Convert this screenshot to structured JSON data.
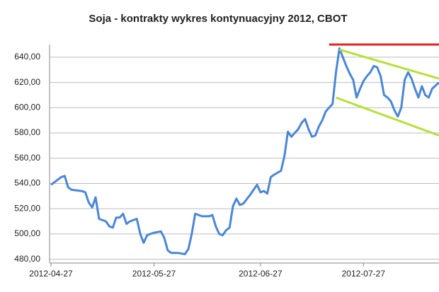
{
  "chart_data": {
    "type": "line",
    "title": "Soja - kontrakty wykres kontynuacyjny 2012, CBOT",
    "x": [
      "2012-04-27",
      "2012-04-29",
      "2012-04-30",
      "2012-05-01",
      "2012-05-02",
      "2012-05-03",
      "2012-05-06",
      "2012-05-07",
      "2012-05-08",
      "2012-05-09",
      "2012-05-10",
      "2012-05-11",
      "2012-05-13",
      "2012-05-14",
      "2012-05-15",
      "2012-05-16",
      "2012-05-17",
      "2012-05-18",
      "2012-05-19",
      "2012-05-20",
      "2012-05-22",
      "2012-05-23",
      "2012-05-24",
      "2012-05-25",
      "2012-05-26",
      "2012-05-27",
      "2012-05-29",
      "2012-05-30",
      "2012-05-31",
      "2012-06-01",
      "2012-06-03",
      "2012-06-05",
      "2012-06-06",
      "2012-06-07",
      "2012-06-08",
      "2012-06-09",
      "2012-06-10",
      "2012-06-12",
      "2012-06-13",
      "2012-06-14",
      "2012-06-15",
      "2012-06-16",
      "2012-06-17",
      "2012-06-18",
      "2012-06-19",
      "2012-06-20",
      "2012-06-21",
      "2012-06-22",
      "2012-06-24",
      "2012-06-26",
      "2012-06-27",
      "2012-06-28",
      "2012-06-29",
      "2012-06-30",
      "2012-07-01",
      "2012-07-03",
      "2012-07-04",
      "2012-07-05",
      "2012-07-06",
      "2012-07-07",
      "2012-07-08",
      "2012-07-09",
      "2012-07-10",
      "2012-07-11",
      "2012-07-12",
      "2012-07-13",
      "2012-07-14",
      "2012-07-15",
      "2012-07-16",
      "2012-07-17",
      "2012-07-18",
      "2012-07-19",
      "2012-07-20",
      "2012-07-21",
      "2012-07-22",
      "2012-07-23",
      "2012-07-24",
      "2012-07-25",
      "2012-07-26",
      "2012-07-27",
      "2012-07-28",
      "2012-07-29",
      "2012-07-30",
      "2012-07-31",
      "2012-08-01",
      "2012-08-02",
      "2012-08-03",
      "2012-08-04",
      "2012-08-05",
      "2012-08-06",
      "2012-08-07",
      "2012-08-08",
      "2012-08-09",
      "2012-08-10",
      "2012-08-11",
      "2012-08-12",
      "2012-08-13",
      "2012-08-14",
      "2012-08-15",
      "2012-08-16",
      "2012-08-18"
    ],
    "series": [
      {
        "color": "#4a86d6",
        "values": [
          539,
          543,
          545,
          546,
          537,
          535,
          534,
          533,
          525,
          521,
          529,
          512,
          510,
          506,
          505,
          513,
          513,
          516,
          508,
          510,
          512,
          500,
          493,
          499,
          500,
          501,
          502,
          497,
          487,
          485,
          485,
          484,
          488,
          500,
          516,
          515,
          514,
          514,
          515,
          506,
          500,
          499,
          503,
          505,
          522,
          528,
          523,
          524,
          531,
          539,
          533,
          534,
          532,
          545,
          547,
          550,
          562,
          581,
          577,
          580,
          583,
          588,
          591,
          583,
          577,
          578,
          585,
          590,
          597,
          600,
          603,
          628,
          647,
          640,
          633,
          627,
          622,
          608,
          615,
          621,
          625,
          628,
          633,
          632,
          625,
          610,
          608,
          605,
          598,
          593,
          600,
          622,
          628,
          623,
          615,
          608,
          617,
          610,
          608,
          615,
          620
        ]
      }
    ],
    "trendlines": [
      {
        "color": "#e02424",
        "x": [
          "2012-07-17",
          "2012-08-18"
        ],
        "y": [
          650,
          650
        ]
      },
      {
        "color": "#b6e03a",
        "x": [
          "2012-07-20",
          "2012-08-18"
        ],
        "y": [
          646,
          623
        ]
      },
      {
        "color": "#b6e03a",
        "x": [
          "2012-07-19",
          "2012-08-18"
        ],
        "y": [
          608,
          578
        ]
      }
    ],
    "xlim": [
      "2012-04-27",
      "2012-08-18"
    ],
    "xticks": [
      "2012-04-27",
      "2012-05-27",
      "2012-06-27",
      "2012-07-27"
    ],
    "ylim": [
      477,
      650
    ],
    "yticks": [
      {
        "value": 480,
        "label": "480,00"
      },
      {
        "value": 500,
        "label": "500,00"
      },
      {
        "value": 520,
        "label": "520,00"
      },
      {
        "value": 540,
        "label": "540,00"
      },
      {
        "value": 560,
        "label": "560,00"
      },
      {
        "value": 580,
        "label": "580,00"
      },
      {
        "value": 600,
        "label": "600,00"
      },
      {
        "value": 620,
        "label": "620,00"
      },
      {
        "value": 640,
        "label": "640,00"
      }
    ],
    "grid": true
  }
}
